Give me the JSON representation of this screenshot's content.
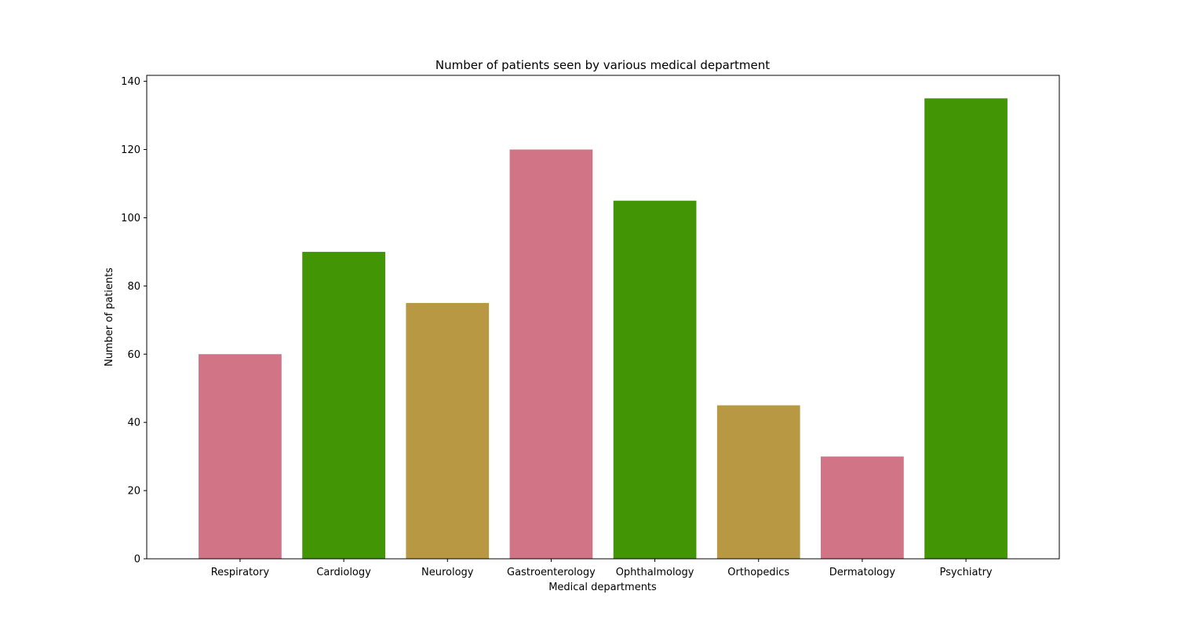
{
  "chart_data": {
    "type": "bar",
    "title": "Number of patients seen by various medical department",
    "xlabel": "Medical departments",
    "ylabel": "Number of patients",
    "categories": [
      "Respiratory",
      "Cardiology",
      "Neurology",
      "Gastroenterology",
      "Ophthalmology",
      "Orthopedics",
      "Dermatology",
      "Psychiatry"
    ],
    "values": [
      60,
      90,
      75,
      120,
      105,
      45,
      30,
      135
    ],
    "bar_colors": [
      "#d07486",
      "#429505",
      "#b89842",
      "#d07486",
      "#429505",
      "#b89842",
      "#d07486",
      "#429505"
    ],
    "yticks": [
      0,
      20,
      40,
      60,
      80,
      100,
      120,
      140
    ],
    "ylim": [
      0,
      141.75
    ],
    "grid": false,
    "legend": "none"
  }
}
